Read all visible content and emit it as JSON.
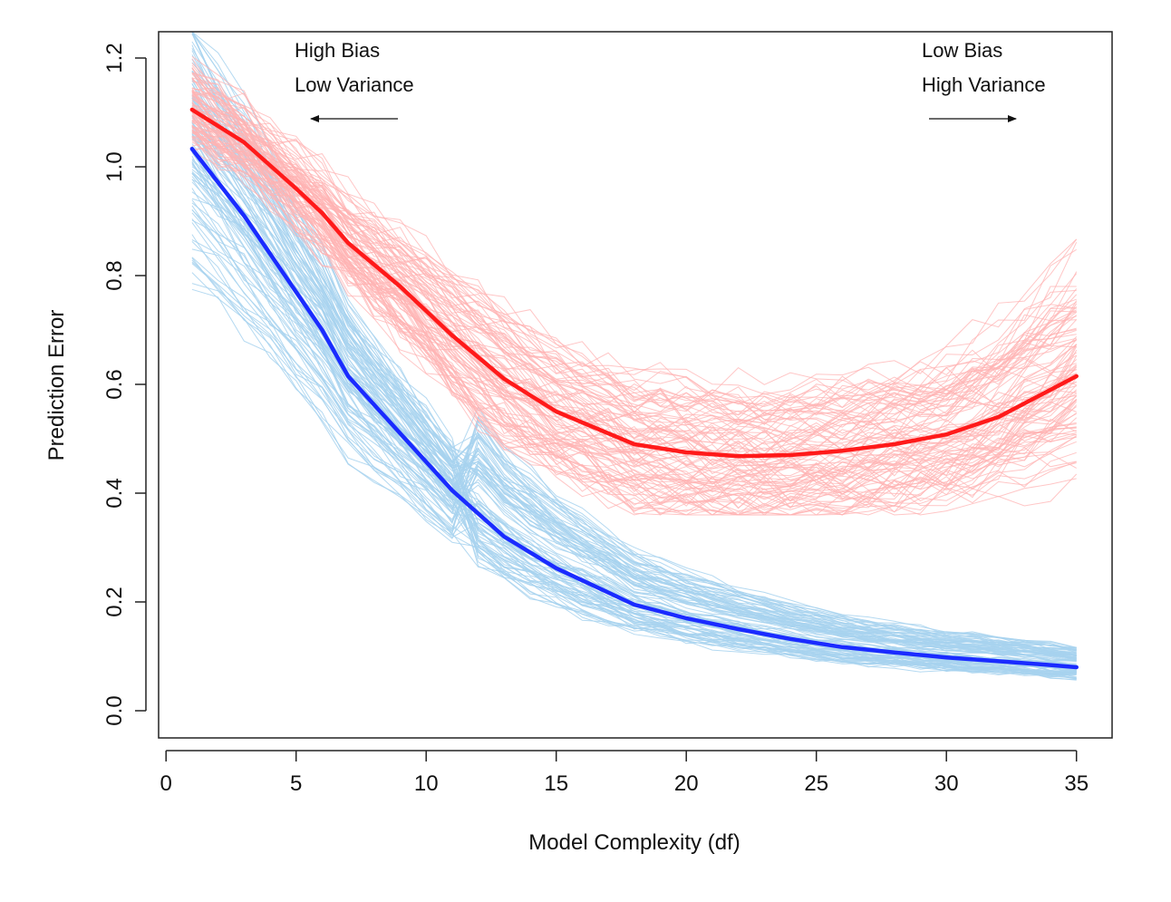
{
  "chart_data": {
    "type": "line",
    "title": "",
    "xlabel": "Model Complexity (df)",
    "ylabel": "Prediction Error",
    "xlim": [
      0,
      36
    ],
    "ylim": [
      -0.05,
      1.25
    ],
    "xticks": [
      "0",
      "5",
      "10",
      "15",
      "20",
      "25",
      "30",
      "35"
    ],
    "yticks": [
      "0.0",
      "0.2",
      "0.4",
      "0.6",
      "0.8",
      "1.0",
      "1.2"
    ],
    "grid": false,
    "x": [
      1,
      3,
      5,
      6,
      7,
      9,
      11,
      13,
      15,
      18,
      20,
      22,
      24,
      26,
      28,
      30,
      32,
      34,
      35
    ],
    "series": [
      {
        "name": "",
        "color": "#ff1a1a",
        "values": [
          1.105,
          1.045,
          0.96,
          0.915,
          0.86,
          0.78,
          0.69,
          0.61,
          0.55,
          0.49,
          0.475,
          0.468,
          0.47,
          0.478,
          0.49,
          0.508,
          0.54,
          0.59,
          0.615
        ]
      },
      {
        "name": "",
        "color": "#1a2bff",
        "values": [
          1.033,
          0.91,
          0.77,
          0.7,
          0.615,
          0.51,
          0.405,
          0.32,
          0.262,
          0.195,
          0.17,
          0.15,
          0.132,
          0.117,
          0.107,
          0.098,
          0.091,
          0.084,
          0.08
        ]
      }
    ],
    "background_bands": [
      {
        "color": "#ffb3b3",
        "count": 100,
        "description_of": "test error realizations"
      },
      {
        "color": "#a7d2ee",
        "count": 100,
        "description_of": "training error realizations"
      }
    ],
    "annotations": [
      {
        "lines": [
          "High Bias",
          "Low Variance"
        ],
        "arrow": "left"
      },
      {
        "lines": [
          "Low Bias",
          "High Variance"
        ],
        "arrow": "right"
      }
    ]
  }
}
